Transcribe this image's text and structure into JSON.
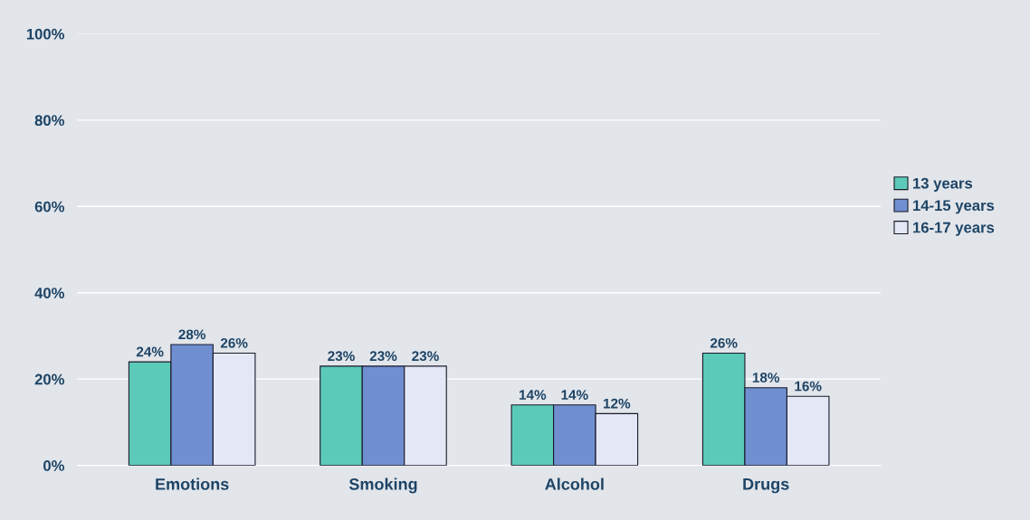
{
  "chart_data": {
    "type": "bar",
    "categories": [
      "Emotions",
      "Smoking",
      "Alcohol",
      "Drugs"
    ],
    "series": [
      {
        "name": "13 years",
        "color": "#5ccab8",
        "values": [
          24,
          23,
          14,
          26
        ]
      },
      {
        "name": "14-15 years",
        "color": "#6f8fd0",
        "values": [
          28,
          23,
          14,
          18
        ]
      },
      {
        "name": "16-17 years",
        "color": "#e4e8f6",
        "values": [
          26,
          23,
          12,
          16
        ]
      }
    ],
    "ylim": [
      0,
      100
    ],
    "yticks": [
      {
        "value": 0,
        "label": "0%"
      },
      {
        "value": 20,
        "label": "20%"
      },
      {
        "value": 40,
        "label": "40%"
      },
      {
        "value": 60,
        "label": "60%"
      },
      {
        "value": 80,
        "label": "80%"
      },
      {
        "value": 100,
        "label": "100%"
      }
    ],
    "value_labels": [
      [
        "24%",
        "23%",
        "14%",
        "26%"
      ],
      [
        "28%",
        "23%",
        "14%",
        "18%"
      ],
      [
        "26%",
        "23%",
        "12%",
        "16%"
      ]
    ],
    "grid": "y",
    "legend": "right"
  }
}
